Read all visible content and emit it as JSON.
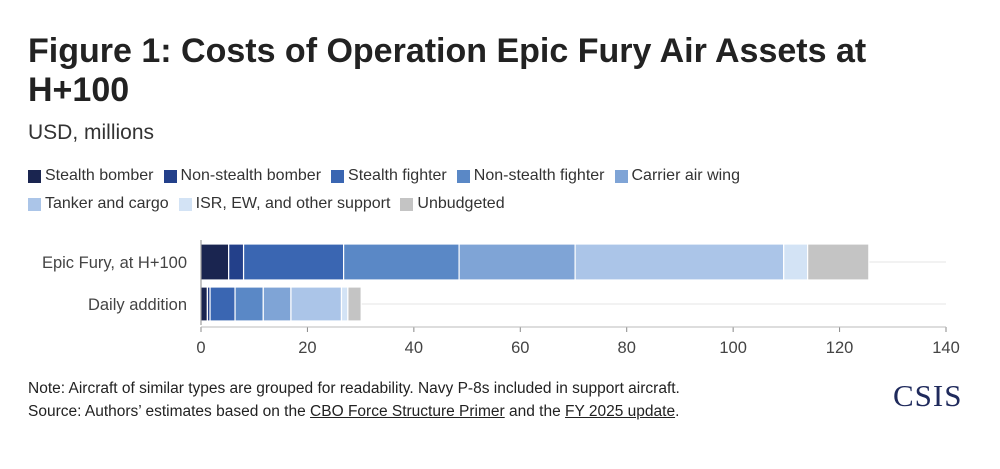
{
  "header": {
    "title": "Figure 1: Costs of Operation Epic Fury Air Assets at H+100",
    "subtitle": "USD, millions"
  },
  "colors": {
    "Stealth bomber": "#1a2550",
    "Non-stealth bomber": "#23408a",
    "Stealth fighter": "#3a66b2",
    "Non-stealth fighter": "#5a88c6",
    "Carrier air wing": "#7fa4d6",
    "Tanker and cargo": "#abc5e8",
    "ISR, EW, and other support": "#d3e3f5",
    "Unbudgeted": "#c4c4c4"
  },
  "chart_data": {
    "type": "bar",
    "orientation": "horizontal",
    "stacked": true,
    "categories": [
      "Epic Fury, at H+100",
      "Daily addition"
    ],
    "series": [
      {
        "name": "Stealth bomber",
        "values": [
          5.2,
          1.2
        ]
      },
      {
        "name": "Non-stealth bomber",
        "values": [
          2.8,
          0.5
        ]
      },
      {
        "name": "Stealth fighter",
        "values": [
          18.8,
          4.7
        ]
      },
      {
        "name": "Non-stealth fighter",
        "values": [
          21.7,
          5.3
        ]
      },
      {
        "name": "Carrier air wing",
        "values": [
          21.8,
          5.2
        ]
      },
      {
        "name": "Tanker and cargo",
        "values": [
          39.2,
          9.5
        ]
      },
      {
        "name": "ISR, EW, and other support",
        "values": [
          4.5,
          1.2
        ]
      },
      {
        "name": "Unbudgeted",
        "values": [
          11.5,
          2.5
        ]
      }
    ],
    "xlim": [
      0,
      140
    ],
    "xticks": [
      0,
      20,
      40,
      60,
      80,
      100,
      120,
      140
    ],
    "grid": true,
    "legend": "top"
  },
  "footer": {
    "note": "Note: Aircraft of similar types are grouped for readability. Navy P-8s included in support aircraft.",
    "source_prefix": "Source: Authors’ estimates based on the ",
    "source_link1": "CBO Force Structure Primer",
    "source_mid": " and the ",
    "source_link2": "FY 2025 update",
    "source_suffix": "."
  },
  "logo": "CSIS"
}
